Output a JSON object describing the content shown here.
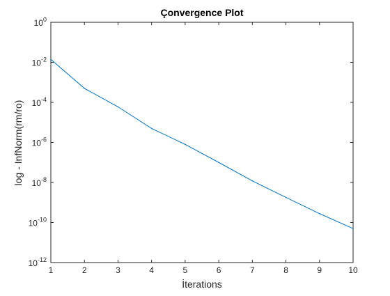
{
  "chart_data": {
    "type": "line",
    "title": "Çonvergence Plot",
    "xlabel": "İterations",
    "ylabel": "log - InfNorm(rm/ro)",
    "xlim": [
      1,
      10
    ],
    "ylim": [
      1e-12,
      1
    ],
    "yscale": "log",
    "grid": false,
    "x_ticks": [
      1,
      2,
      3,
      4,
      5,
      6,
      7,
      8,
      9,
      10
    ],
    "y_ticks": [
      {
        "base": "10",
        "exp": "0",
        "value": 1
      },
      {
        "base": "10",
        "exp": "-2",
        "value": 0.01
      },
      {
        "base": "10",
        "exp": "-4",
        "value": 0.0001
      },
      {
        "base": "10",
        "exp": "-6",
        "value": 1e-06
      },
      {
        "base": "10",
        "exp": "-8",
        "value": 1e-08
      },
      {
        "base": "10",
        "exp": "-10",
        "value": 1e-10
      },
      {
        "base": "10",
        "exp": "-12",
        "value": 1e-12
      }
    ],
    "series": [
      {
        "x": [
          1,
          2,
          3,
          4,
          5,
          6,
          7,
          8,
          9,
          10
        ],
        "y": [
          0.014,
          0.0005,
          6e-05,
          5e-06,
          8e-07,
          1e-07,
          1.2e-08,
          1.8e-09,
          2.8e-10,
          5e-11
        ]
      }
    ],
    "colors": {
      "series": "#0072BD",
      "axes": "#262626",
      "background": "#ffffff"
    }
  }
}
